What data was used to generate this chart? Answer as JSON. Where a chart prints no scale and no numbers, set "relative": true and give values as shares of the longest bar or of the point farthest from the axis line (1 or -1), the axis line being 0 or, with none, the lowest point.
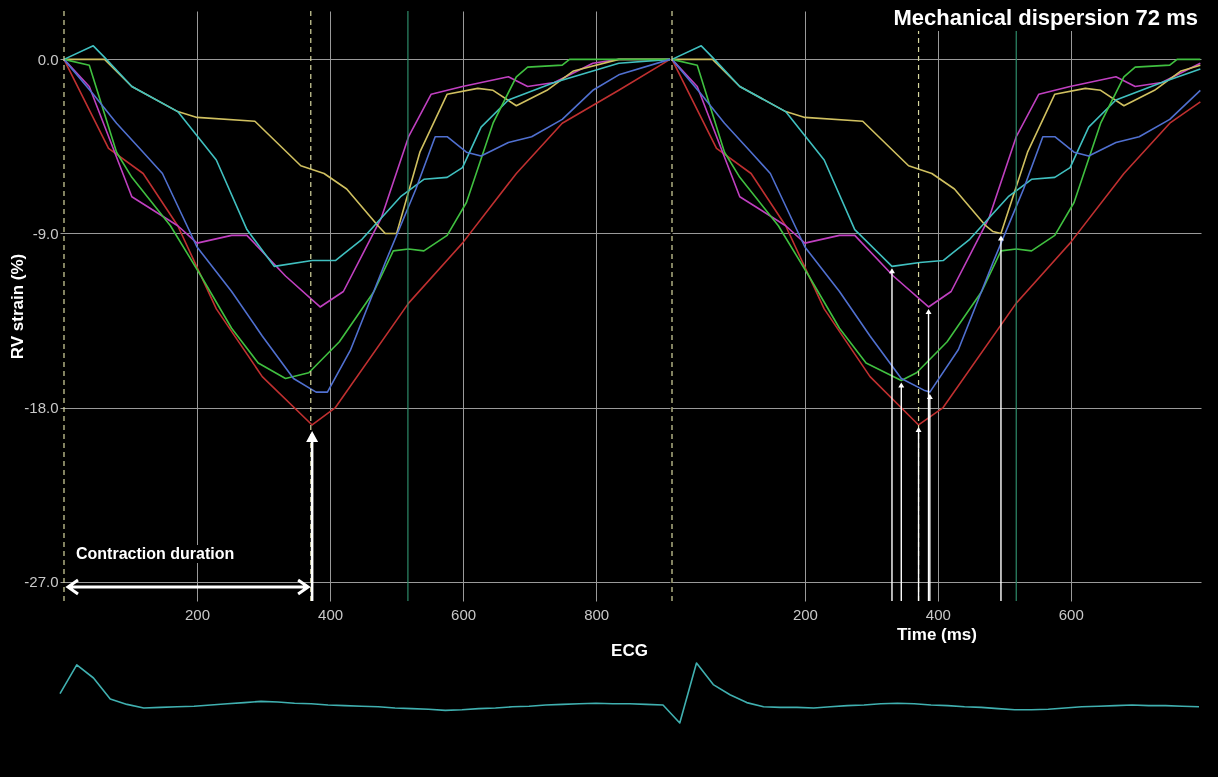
{
  "chart_data": [
    {
      "type": "line",
      "ylabel": "RV strain (%)",
      "annotations": [
        "Contraction duration"
      ],
      "xlim": [
        -6,
        911
      ],
      "ylim": [
        -28,
        2.5
      ],
      "xticks": [
        200,
        400,
        600,
        800
      ],
      "yticks": [
        {
          "value": 0,
          "label": "0.0"
        },
        {
          "value": -9,
          "label": "-9.0"
        },
        {
          "value": -18,
          "label": "-18.0"
        },
        {
          "value": -27,
          "label": "-27.0"
        }
      ],
      "grid": true,
      "ref_lines": [
        {
          "axis": "x",
          "value": 0,
          "color": "#d8d8a0",
          "line_style": "dashed"
        },
        {
          "axis": "x",
          "value": 371,
          "color": "#d8d8a0",
          "line_style": "dashed"
        },
        {
          "axis": "x",
          "value": 517,
          "color": "#2e8b6a",
          "line_style": "solid"
        }
      ],
      "series": [
        {
          "color": "#c03030",
          "x": [
            0,
            67,
            119,
            171,
            229,
            298,
            373,
            408,
            518,
            599,
            680,
            749,
            834,
            911
          ],
          "values": [
            0,
            -4.6,
            -5.9,
            -8.6,
            -12.9,
            -16.4,
            -18.9,
            -18.0,
            -12.6,
            -9.5,
            -5.9,
            -3.3,
            -1.6,
            0
          ]
        },
        {
          "color": "#c040c0",
          "x": [
            0,
            38,
            102,
            171,
            200,
            252,
            275,
            333,
            385,
            420,
            477,
            518,
            552,
            599,
            668,
            697,
            737,
            795,
            834,
            911
          ],
          "values": [
            0,
            -1.4,
            -7.1,
            -8.6,
            -9.5,
            -9.1,
            -9.1,
            -11.2,
            -12.8,
            -12.0,
            -8.2,
            -4.0,
            -1.8,
            -1.4,
            -0.9,
            -1.4,
            -1.2,
            -0.2,
            0,
            0
          ]
        },
        {
          "color": "#d0c060",
          "x": [
            0,
            61,
            102,
            171,
            200,
            287,
            356,
            391,
            425,
            472,
            483,
            500,
            535,
            576,
            622,
            645,
            680,
            726,
            766,
            834,
            911
          ],
          "values": [
            0,
            0,
            -1.4,
            -2.7,
            -3.0,
            -3.2,
            -5.5,
            -5.9,
            -6.7,
            -8.6,
            -9.0,
            -9.0,
            -4.8,
            -1.8,
            -1.5,
            -1.6,
            -2.4,
            -1.6,
            -0.6,
            0,
            0
          ]
        },
        {
          "color": "#40c0c0",
          "x": [
            0,
            44,
            61,
            102,
            171,
            229,
            275,
            316,
            373,
            408,
            448,
            506,
            541,
            576,
            599,
            627,
            668,
            737,
            834,
            911
          ],
          "values": [
            0,
            0.7,
            0.1,
            -1.4,
            -2.7,
            -5.2,
            -8.8,
            -10.7,
            -10.4,
            -10.4,
            -9.3,
            -7.1,
            -6.2,
            -6.1,
            -5.6,
            -3.5,
            -2.1,
            -1.2,
            -0.2,
            0
          ]
        },
        {
          "color": "#40c040",
          "x": [
            0,
            38,
            79,
            102,
            160,
            206,
            252,
            292,
            333,
            368,
            414,
            466,
            495,
            518,
            541,
            576,
            605,
            645,
            680,
            697,
            749,
            760,
            911
          ],
          "values": [
            0,
            -0.3,
            -4.8,
            -6.1,
            -8.6,
            -11.2,
            -13.9,
            -15.7,
            -16.5,
            -16.2,
            -14.6,
            -12.0,
            -9.9,
            -9.8,
            -9.9,
            -9.1,
            -7.4,
            -3.3,
            -0.9,
            -0.4,
            -0.3,
            0,
            0
          ]
        },
        {
          "color": "#5070d0",
          "x": [
            0,
            44,
            79,
            119,
            148,
            200,
            252,
            298,
            345,
            379,
            396,
            431,
            483,
            529,
            558,
            576,
            605,
            627,
            668,
            703,
            749,
            795,
            834,
            911
          ],
          "values": [
            0,
            -1.8,
            -3.3,
            -4.8,
            -5.9,
            -9.7,
            -12.0,
            -14.3,
            -16.5,
            -17.2,
            -17.2,
            -15.0,
            -10.5,
            -6.7,
            -4.0,
            -4.0,
            -4.8,
            -5.0,
            -4.3,
            -4.0,
            -3.1,
            -1.6,
            -0.8,
            0
          ]
        }
      ]
    },
    {
      "type": "line",
      "xlabel": "Time (ms)",
      "tick_labels": "x",
      "annotations": [
        "Mechanical dispersion 72 ms"
      ],
      "xlim": [
        0,
        796
      ],
      "ylim": [
        -28,
        2.5
      ],
      "xticks": [
        200,
        400,
        600
      ],
      "yticks": [
        0,
        -9,
        -18,
        -27
      ],
      "grid": true,
      "ref_lines": [
        {
          "axis": "x",
          "value": 0,
          "color": "#d8d8a0",
          "line_style": "dashed"
        },
        {
          "axis": "x",
          "value": 371,
          "color": "#d8d8a0",
          "line_style": "dashed"
        },
        {
          "axis": "x",
          "value": 518,
          "color": "#2e8b6a",
          "line_style": "solid"
        }
      ],
      "series": [
        {
          "color": "#c03030",
          "x": [
            0,
            67,
            119,
            171,
            229,
            298,
            371,
            408,
            518,
            599,
            680,
            749,
            795
          ],
          "values": [
            0,
            -4.6,
            -5.9,
            -8.6,
            -12.9,
            -16.4,
            -18.9,
            -18.0,
            -12.6,
            -9.5,
            -5.9,
            -3.3,
            -2.2
          ]
        },
        {
          "color": "#c040c0",
          "x": [
            0,
            38,
            102,
            171,
            200,
            252,
            275,
            333,
            386,
            420,
            477,
            518,
            552,
            599,
            668,
            697,
            737,
            795
          ],
          "values": [
            0,
            -1.4,
            -7.1,
            -8.6,
            -9.5,
            -9.1,
            -9.1,
            -11.2,
            -12.8,
            -12.0,
            -8.2,
            -4.0,
            -1.8,
            -1.4,
            -0.9,
            -1.4,
            -1.2,
            -0.2
          ]
        },
        {
          "color": "#d0c060",
          "x": [
            0,
            61,
            102,
            171,
            200,
            287,
            356,
            391,
            425,
            472,
            483,
            495,
            535,
            576,
            622,
            645,
            680,
            726,
            766,
            795
          ],
          "values": [
            0,
            0,
            -1.4,
            -2.7,
            -3.0,
            -3.2,
            -5.5,
            -5.9,
            -6.7,
            -8.6,
            -8.9,
            -9.0,
            -4.8,
            -1.8,
            -1.5,
            -1.6,
            -2.4,
            -1.6,
            -0.6,
            -0.3
          ]
        },
        {
          "color": "#40c0c0",
          "x": [
            0,
            44,
            61,
            102,
            171,
            229,
            275,
            331,
            373,
            408,
            448,
            506,
            541,
            576,
            599,
            627,
            668,
            737,
            795
          ],
          "values": [
            0,
            0.7,
            0.1,
            -1.4,
            -2.7,
            -5.2,
            -8.8,
            -10.7,
            -10.5,
            -10.4,
            -9.3,
            -7.1,
            -6.2,
            -6.1,
            -5.6,
            -3.5,
            -2.1,
            -1.2,
            -0.5
          ]
        },
        {
          "color": "#40c040",
          "x": [
            0,
            38,
            79,
            102,
            160,
            206,
            252,
            292,
            345,
            368,
            414,
            466,
            495,
            518,
            541,
            576,
            605,
            645,
            680,
            697,
            749,
            760,
            795
          ],
          "values": [
            0,
            -0.3,
            -4.8,
            -6.1,
            -8.6,
            -11.2,
            -13.9,
            -15.7,
            -16.6,
            -16.2,
            -14.6,
            -12.0,
            -9.9,
            -9.8,
            -9.9,
            -9.1,
            -7.4,
            -3.3,
            -0.9,
            -0.4,
            -0.3,
            0,
            0
          ]
        },
        {
          "color": "#5070d0",
          "x": [
            0,
            44,
            79,
            119,
            148,
            200,
            252,
            298,
            345,
            379,
            388,
            431,
            483,
            529,
            558,
            576,
            605,
            627,
            668,
            703,
            749,
            795
          ],
          "values": [
            0,
            -1.8,
            -3.3,
            -4.8,
            -5.9,
            -9.7,
            -12.0,
            -14.3,
            -16.5,
            -17.1,
            -17.2,
            -15.0,
            -10.5,
            -6.7,
            -4.0,
            -4.0,
            -4.8,
            -5.0,
            -4.3,
            -4.0,
            -3.1,
            -1.6
          ]
        }
      ]
    },
    {
      "type": "line",
      "title": "ECG",
      "relative": true,
      "categories": [
        null,
        null,
        null,
        null,
        null,
        null,
        null,
        null,
        null,
        null,
        null,
        null,
        null,
        null,
        null,
        null,
        null,
        null,
        null,
        null,
        null,
        null,
        null,
        null,
        null,
        null,
        null,
        null,
        null,
        null,
        null,
        null,
        null,
        null,
        null,
        null,
        null,
        null,
        null,
        null,
        null,
        null,
        null,
        null,
        null,
        null,
        null,
        null,
        null,
        null,
        null,
        null,
        null,
        null,
        null,
        null,
        null,
        null,
        null,
        null,
        null,
        null,
        null,
        null,
        null,
        null,
        null,
        null,
        null
      ],
      "series": [
        {
          "color": "#40b0b0",
          "values": [
            0.49,
            0.97,
            0.75,
            0.4,
            0.31,
            0.25,
            0.26,
            0.27,
            0.28,
            0.3,
            0.32,
            0.34,
            0.36,
            0.35,
            0.33,
            0.32,
            0.3,
            0.29,
            0.28,
            0.27,
            0.25,
            0.24,
            0.23,
            0.21,
            0.22,
            0.24,
            0.25,
            0.27,
            0.28,
            0.3,
            0.31,
            0.32,
            0.33,
            0.32,
            0.32,
            0.31,
            0.3,
            0,
            1.0,
            0.64,
            0.47,
            0.34,
            0.27,
            0.26,
            0.26,
            0.25,
            0.27,
            0.29,
            0.3,
            0.32,
            0.33,
            0.32,
            0.3,
            0.29,
            0.27,
            0.26,
            0.24,
            0.22,
            0.22,
            0.23,
            0.25,
            0.27,
            0.28,
            0.29,
            0.3,
            0.29,
            0.29,
            0.28,
            0.27
          ]
        }
      ]
    }
  ]
}
